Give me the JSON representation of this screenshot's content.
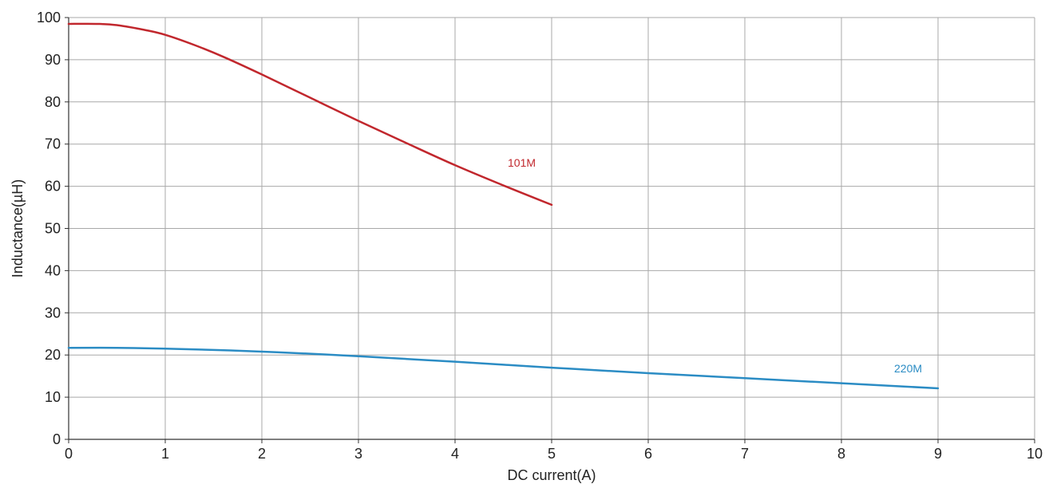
{
  "chart_data": {
    "type": "line",
    "title": "",
    "xlabel": "DC current(A)",
    "ylabel": "Inductance(µH)",
    "xlim": [
      0,
      10
    ],
    "ylim": [
      0,
      100
    ],
    "xticks": [
      0,
      1,
      2,
      3,
      4,
      5,
      6,
      7,
      8,
      9,
      10
    ],
    "yticks": [
      0,
      10,
      20,
      30,
      40,
      50,
      60,
      70,
      80,
      90,
      100
    ],
    "grid": true,
    "series": [
      {
        "name": "101M",
        "color": "#c1272d",
        "x": [
          0,
          0.3,
          0.5,
          0.8,
          1.0,
          1.3,
          1.6,
          2.0,
          2.5,
          3.0,
          3.5,
          4.0,
          4.5,
          5.0
        ],
        "y": [
          98.5,
          98.5,
          98.2,
          97.0,
          95.9,
          93.5,
          90.7,
          86.5,
          81.0,
          75.5,
          70.2,
          65.0,
          60.2,
          55.6
        ]
      },
      {
        "name": "220M",
        "color": "#2b8cc4",
        "x": [
          0,
          0.5,
          1.0,
          1.5,
          2.0,
          2.5,
          3.0,
          4.0,
          5.0,
          6.0,
          7.0,
          8.0,
          9.0
        ],
        "y": [
          21.7,
          21.7,
          21.5,
          21.2,
          20.8,
          20.3,
          19.7,
          18.4,
          17.0,
          15.7,
          14.5,
          13.3,
          12.1
        ]
      }
    ]
  }
}
